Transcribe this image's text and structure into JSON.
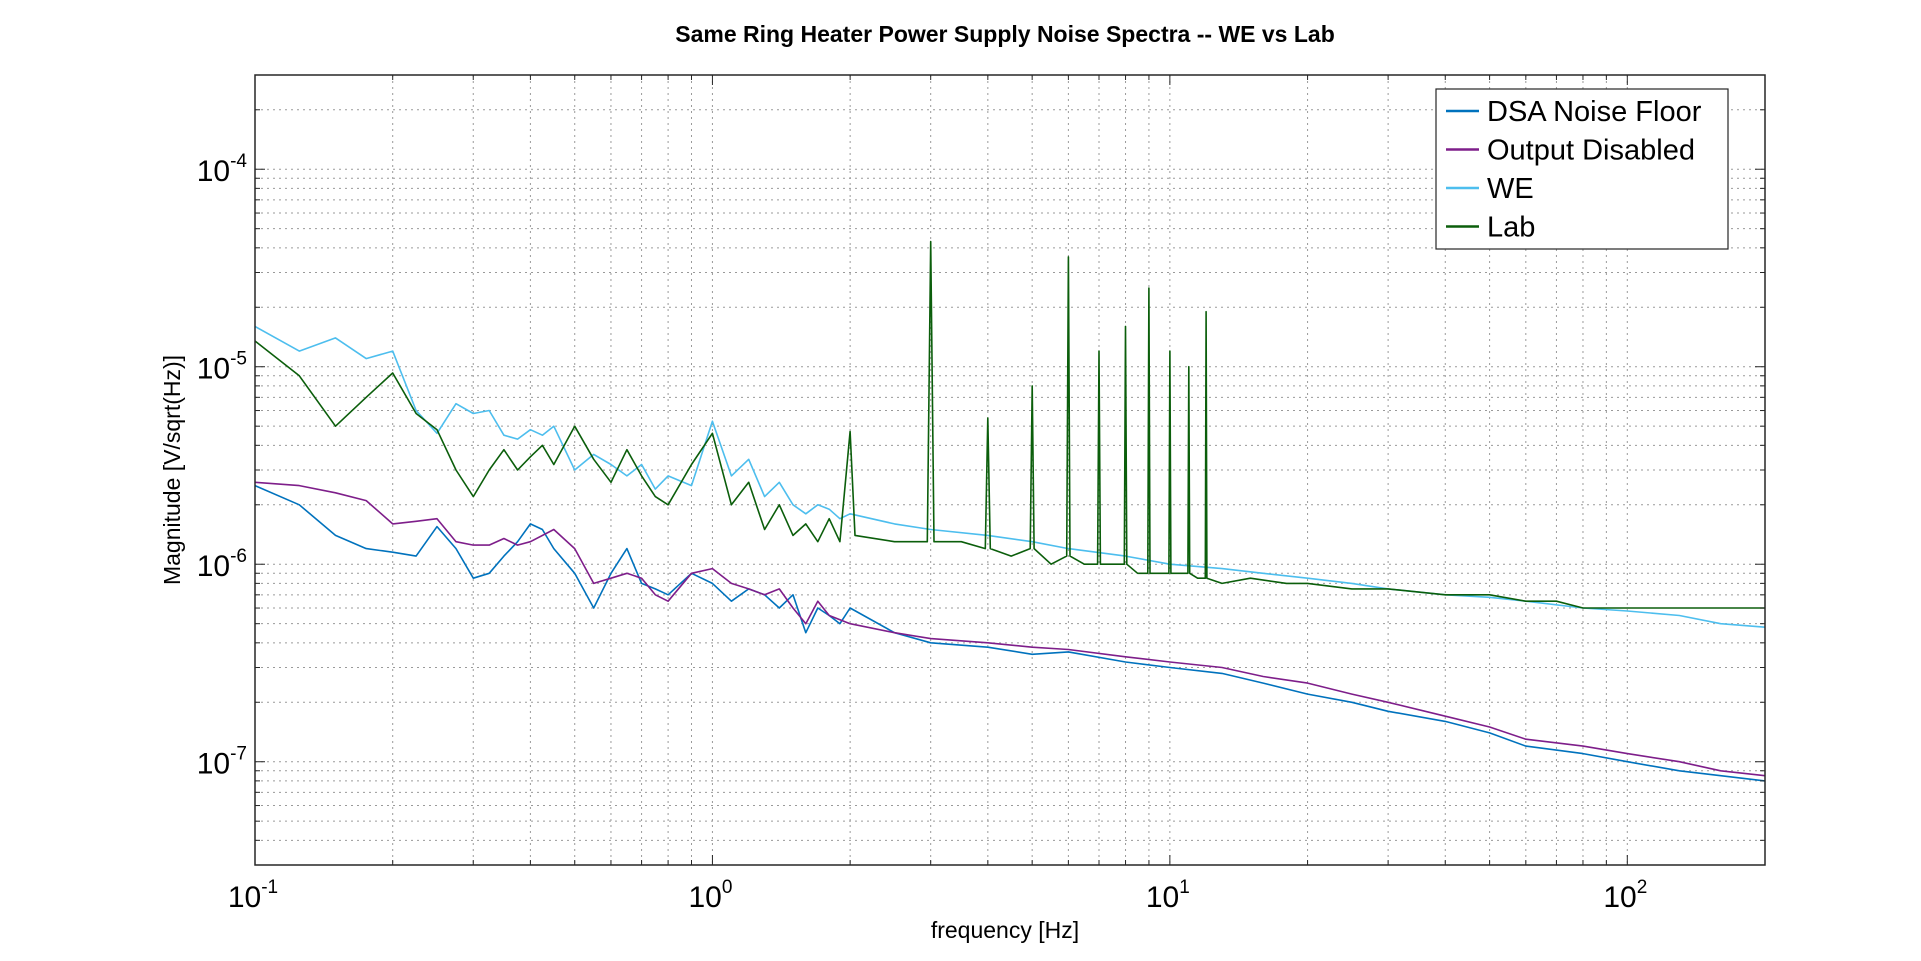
{
  "chart_data": {
    "type": "line",
    "title": "Same Ring Heater Power Supply Noise Spectra -- WE vs Lab",
    "xlabel": "frequency [Hz]",
    "ylabel": "Magnitude [V/sqrt(Hz)]",
    "xscale": "log",
    "yscale": "log",
    "xlim": [
      0.1,
      200
    ],
    "ylim": [
      3e-08,
      0.0003
    ],
    "grid": true,
    "legend_position": "top-right",
    "x_ticks": [
      {
        "base": "10",
        "exp": "-1",
        "value": 0.1
      },
      {
        "base": "10",
        "exp": "0",
        "value": 1
      },
      {
        "base": "10",
        "exp": "1",
        "value": 10
      },
      {
        "base": "10",
        "exp": "2",
        "value": 100
      }
    ],
    "y_ticks": [
      {
        "base": "10",
        "exp": "-7",
        "value": 1e-07
      },
      {
        "base": "10",
        "exp": "-6",
        "value": 1e-06
      },
      {
        "base": "10",
        "exp": "-5",
        "value": 1e-05
      },
      {
        "base": "10",
        "exp": "-4",
        "value": 0.0001
      }
    ],
    "series": [
      {
        "name": "DSA Noise Floor",
        "color": "#0072bd",
        "x": [
          0.1,
          0.125,
          0.15,
          0.175,
          0.2,
          0.225,
          0.25,
          0.275,
          0.3,
          0.325,
          0.35,
          0.375,
          0.4,
          0.425,
          0.45,
          0.5,
          0.55,
          0.6,
          0.65,
          0.7,
          0.75,
          0.8,
          0.9,
          1.0,
          1.1,
          1.2,
          1.3,
          1.4,
          1.5,
          1.6,
          1.7,
          1.8,
          1.9,
          2.0,
          2.5,
          3,
          4,
          5,
          6,
          8,
          10,
          13,
          16,
          20,
          25,
          30,
          40,
          50,
          60,
          80,
          100,
          130,
          160,
          200
        ],
        "y": [
          2.5e-06,
          2e-06,
          1.4e-06,
          1.2e-06,
          1.15e-06,
          1.1e-06,
          1.55e-06,
          1.2e-06,
          8.5e-07,
          9e-07,
          1.1e-06,
          1.3e-06,
          1.6e-06,
          1.5e-06,
          1.2e-06,
          9e-07,
          6e-07,
          9e-07,
          1.2e-06,
          8e-07,
          7.5e-07,
          7e-07,
          9e-07,
          8e-07,
          6.5e-07,
          7.5e-07,
          7e-07,
          6e-07,
          7e-07,
          4.5e-07,
          6e-07,
          5.5e-07,
          5e-07,
          6e-07,
          4.5e-07,
          4e-07,
          3.8e-07,
          3.5e-07,
          3.6e-07,
          3.2e-07,
          3e-07,
          2.8e-07,
          2.5e-07,
          2.2e-07,
          2e-07,
          1.8e-07,
          1.6e-07,
          1.4e-07,
          1.2e-07,
          1.1e-07,
          1e-07,
          9e-08,
          8.5e-08,
          8e-08
        ]
      },
      {
        "name": "Output Disabled",
        "color": "#7e1e8a",
        "x": [
          0.1,
          0.125,
          0.15,
          0.175,
          0.2,
          0.225,
          0.25,
          0.275,
          0.3,
          0.325,
          0.35,
          0.375,
          0.4,
          0.45,
          0.5,
          0.55,
          0.6,
          0.65,
          0.7,
          0.75,
          0.8,
          0.9,
          1.0,
          1.1,
          1.2,
          1.3,
          1.4,
          1.5,
          1.6,
          1.7,
          1.8,
          2.0,
          2.5,
          3,
          4,
          5,
          6,
          8,
          10,
          13,
          16,
          20,
          25,
          30,
          40,
          50,
          60,
          80,
          100,
          130,
          160,
          200
        ],
        "y": [
          2.6e-06,
          2.5e-06,
          2.3e-06,
          2.1e-06,
          1.6e-06,
          1.65e-06,
          1.7e-06,
          1.3e-06,
          1.25e-06,
          1.25e-06,
          1.35e-06,
          1.25e-06,
          1.3e-06,
          1.5e-06,
          1.2e-06,
          8e-07,
          8.5e-07,
          9e-07,
          8.5e-07,
          7e-07,
          6.5e-07,
          9e-07,
          9.5e-07,
          8e-07,
          7.5e-07,
          7e-07,
          7.5e-07,
          6e-07,
          5e-07,
          6.5e-07,
          5.5e-07,
          5e-07,
          4.5e-07,
          4.2e-07,
          4e-07,
          3.8e-07,
          3.7e-07,
          3.4e-07,
          3.2e-07,
          3e-07,
          2.7e-07,
          2.5e-07,
          2.2e-07,
          2e-07,
          1.7e-07,
          1.5e-07,
          1.3e-07,
          1.2e-07,
          1.1e-07,
          1e-07,
          9e-08,
          8.5e-08
        ]
      },
      {
        "name": "WE",
        "color": "#4dbeee",
        "x": [
          0.1,
          0.125,
          0.15,
          0.175,
          0.2,
          0.225,
          0.25,
          0.275,
          0.3,
          0.325,
          0.35,
          0.375,
          0.4,
          0.425,
          0.45,
          0.5,
          0.55,
          0.6,
          0.65,
          0.7,
          0.75,
          0.8,
          0.9,
          1.0,
          1.1,
          1.2,
          1.3,
          1.4,
          1.5,
          1.6,
          1.7,
          1.8,
          1.9,
          2.0,
          2.5,
          3,
          4,
          5,
          6,
          8,
          10,
          13,
          16,
          20,
          25,
          30,
          40,
          50,
          60,
          80,
          100,
          130,
          160,
          200
        ],
        "y": [
          1.6e-05,
          1.2e-05,
          1.4e-05,
          1.1e-05,
          1.2e-05,
          6e-06,
          4.6e-06,
          6.5e-06,
          5.8e-06,
          6e-06,
          4.5e-06,
          4.3e-06,
          4.8e-06,
          4.5e-06,
          5e-06,
          3e-06,
          3.6e-06,
          3.2e-06,
          2.8e-06,
          3.2e-06,
          2.4e-06,
          2.8e-06,
          2.5e-06,
          5.3e-06,
          2.8e-06,
          3.4e-06,
          2.2e-06,
          2.6e-06,
          2e-06,
          1.8e-06,
          2e-06,
          1.9e-06,
          1.7e-06,
          1.8e-06,
          1.6e-06,
          1.5e-06,
          1.4e-06,
          1.3e-06,
          1.2e-06,
          1.1e-06,
          1e-06,
          9.5e-07,
          9e-07,
          8.5e-07,
          8e-07,
          7.5e-07,
          7e-07,
          6.8e-07,
          6.5e-07,
          6e-07,
          5.8e-07,
          5.5e-07,
          5e-07,
          4.8e-07
        ]
      },
      {
        "name": "Lab",
        "color": "#0b5e0b",
        "x": [
          0.1,
          0.125,
          0.15,
          0.175,
          0.2,
          0.225,
          0.25,
          0.275,
          0.3,
          0.325,
          0.35,
          0.375,
          0.4,
          0.425,
          0.45,
          0.5,
          0.55,
          0.6,
          0.65,
          0.7,
          0.75,
          0.8,
          0.9,
          1.0,
          1.1,
          1.2,
          1.3,
          1.4,
          1.5,
          1.6,
          1.7,
          1.8,
          1.9,
          2.0,
          2.05,
          2.5,
          2.95,
          3.0,
          3.05,
          3.5,
          3.95,
          4.0,
          4.05,
          4.5,
          4.95,
          5.0,
          5.05,
          5.5,
          5.95,
          6.0,
          6.05,
          6.5,
          6.95,
          7.0,
          7.05,
          7.5,
          7.95,
          8.0,
          8.05,
          8.5,
          8.95,
          9.0,
          9.05,
          9.5,
          9.95,
          10.0,
          10.05,
          10.5,
          10.95,
          11.0,
          11.05,
          11.5,
          11.95,
          12.0,
          12.05,
          13,
          15,
          18,
          20,
          25,
          30,
          40,
          50,
          60,
          70,
          80,
          100,
          130,
          160,
          200
        ],
        "y": [
          1.35e-05,
          9e-06,
          5e-06,
          7e-06,
          9.3e-06,
          5.8e-06,
          4.8e-06,
          3e-06,
          2.2e-06,
          3e-06,
          3.8e-06,
          3e-06,
          3.5e-06,
          4e-06,
          3.2e-06,
          5e-06,
          3.4e-06,
          2.6e-06,
          3.8e-06,
          2.8e-06,
          2.2e-06,
          2e-06,
          3.2e-06,
          4.6e-06,
          2e-06,
          2.6e-06,
          1.5e-06,
          2e-06,
          1.4e-06,
          1.6e-06,
          1.3e-06,
          1.7e-06,
          1.3e-06,
          4.7e-06,
          1.4e-06,
          1.3e-06,
          1.3e-06,
          4.3e-05,
          1.3e-06,
          1.3e-06,
          1.2e-06,
          5.5e-06,
          1.2e-06,
          1.1e-06,
          1.2e-06,
          8e-06,
          1.2e-06,
          1e-06,
          1.1e-06,
          3.6e-05,
          1.1e-06,
          1e-06,
          1e-06,
          1.2e-05,
          1e-06,
          1e-06,
          1e-06,
          1.6e-05,
          1e-06,
          9e-07,
          9e-07,
          2.5e-05,
          9e-07,
          9e-07,
          9e-07,
          1.2e-05,
          9e-07,
          9e-07,
          9e-07,
          1e-05,
          9e-07,
          8.5e-07,
          8.5e-07,
          1.9e-05,
          8.5e-07,
          8e-07,
          8.5e-07,
          8e-07,
          8e-07,
          7.5e-07,
          7.5e-07,
          7e-07,
          7e-07,
          6.5e-07,
          6.5e-07,
          6e-07,
          6e-07,
          6e-07,
          6e-07,
          6e-07
        ]
      }
    ]
  }
}
